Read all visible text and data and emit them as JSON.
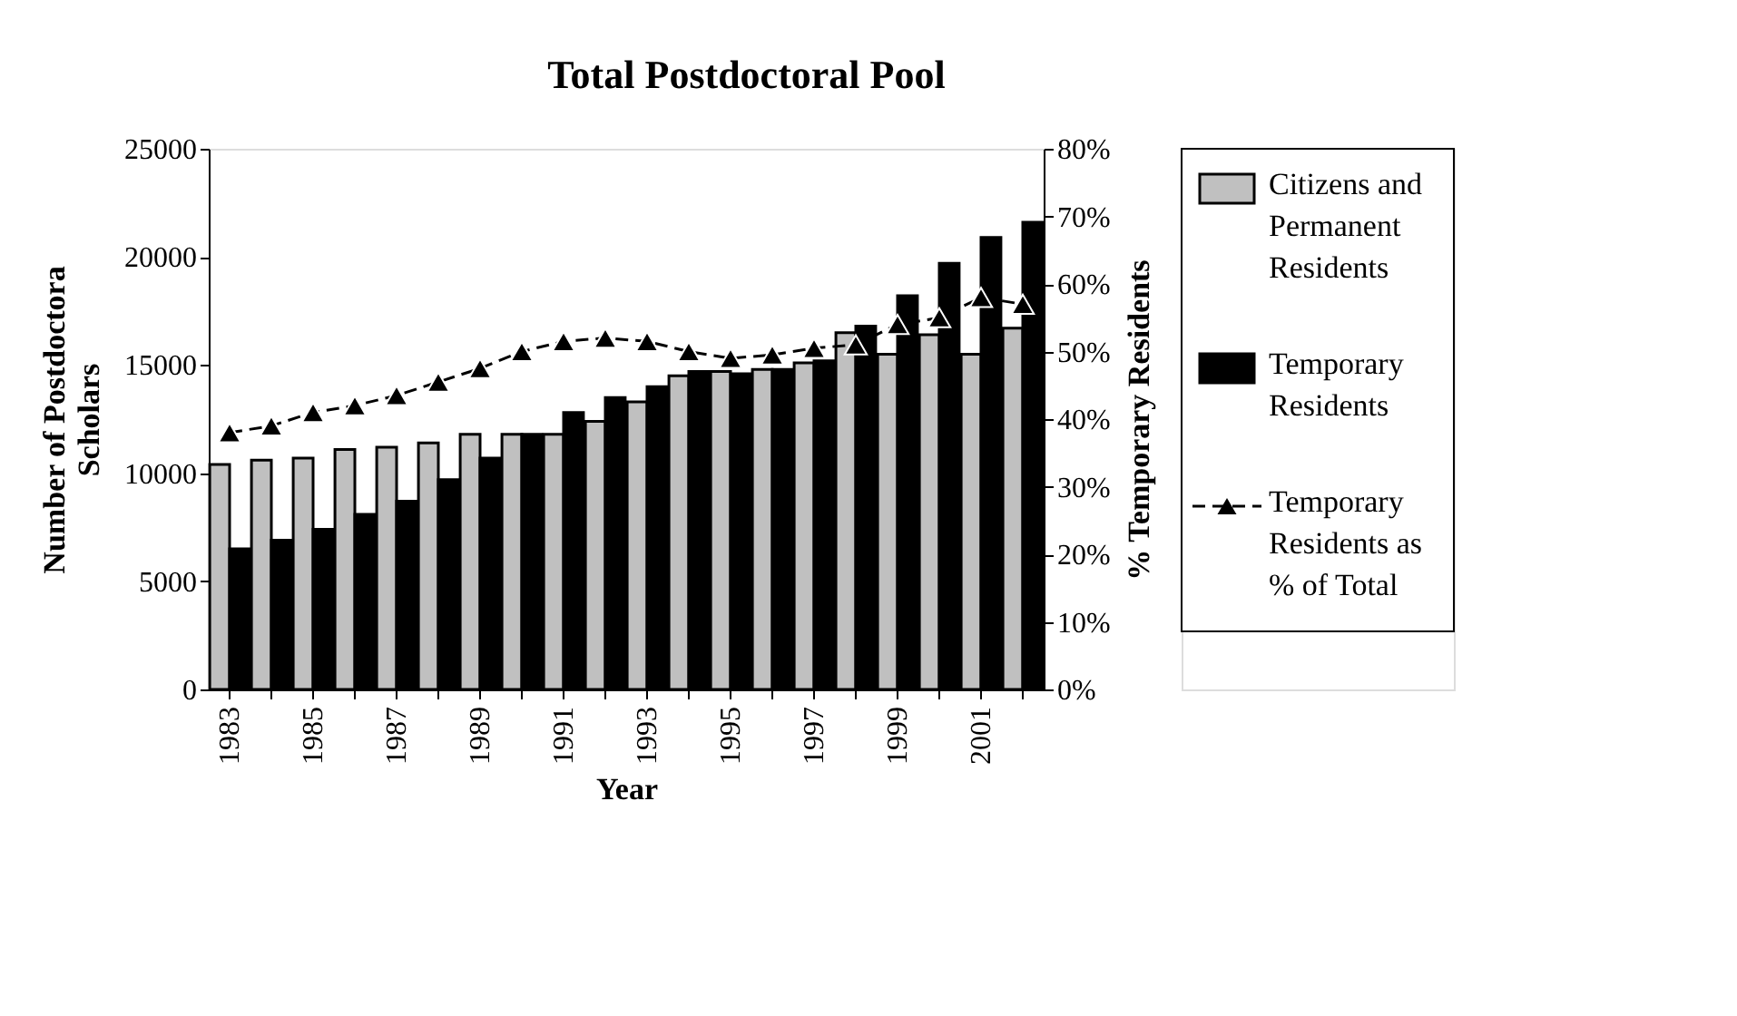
{
  "chart_data": {
    "type": "bar",
    "title": "Total Postdoctoral Pool",
    "xlabel": "Year",
    "ylabel": "Number of Postdoctora Scholars",
    "y2label": "% Temporary Residents",
    "categories": [
      "1983",
      null,
      "1985",
      null,
      "1987",
      null,
      "1989",
      null,
      "1991",
      null,
      "1993",
      null,
      "1995",
      null,
      "1997",
      null,
      "1999",
      null,
      "2001",
      null
    ],
    "series": [
      {
        "name": "Citizens and Permanent Residents",
        "color": "#c0c0c0",
        "values": [
          10400,
          10600,
          10700,
          11100,
          11200,
          11400,
          11800,
          11800,
          11800,
          12400,
          13300,
          14500,
          14700,
          14800,
          15100,
          16500,
          15500,
          16400,
          15500,
          16700
        ]
      },
      {
        "name": "Temporary Residents",
        "color": "#000000",
        "values": [
          6500,
          6900,
          7400,
          8100,
          8700,
          9700,
          10700,
          11800,
          12800,
          13500,
          14000,
          14700,
          14600,
          14800,
          15200,
          16800,
          18200,
          19700,
          20900,
          21600
        ]
      },
      {
        "name": "Temporary Residents as % of Total",
        "type": "line",
        "axis": "y2",
        "color": "#000000",
        "marker": "triangle",
        "line_style": "dashed",
        "values": [
          38,
          39,
          41,
          42,
          43.5,
          45.5,
          47.5,
          50,
          51.5,
          52,
          51.5,
          50,
          49,
          49.5,
          50.5,
          51,
          54,
          55,
          58,
          57
        ]
      }
    ],
    "ylim": [
      0,
      25000
    ],
    "yticks": [
      0,
      5000,
      10000,
      15000,
      20000,
      25000
    ],
    "y2lim": [
      0,
      80
    ],
    "y2ticks": [
      {
        "value": 0,
        "label": "0%"
      },
      {
        "value": 10,
        "label": "10%"
      },
      {
        "value": 20,
        "label": "20%"
      },
      {
        "value": 30,
        "label": "30%"
      },
      {
        "value": 40,
        "label": "40%"
      },
      {
        "value": 50,
        "label": "50%"
      },
      {
        "value": 60,
        "label": "60%"
      },
      {
        "value": 70,
        "label": "70%"
      },
      {
        "value": 80,
        "label": "80%"
      }
    ],
    "grid": false,
    "legend": "right"
  }
}
